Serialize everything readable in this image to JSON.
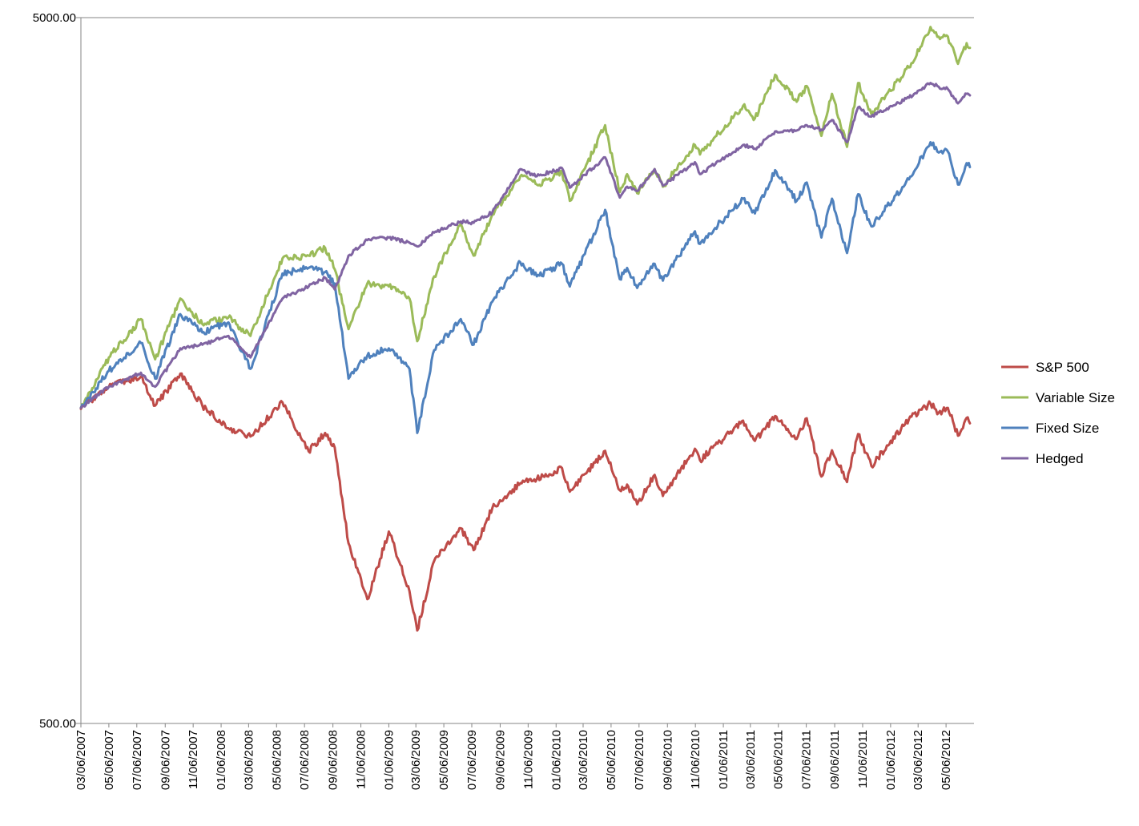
{
  "chart_data": {
    "type": "line",
    "title": "",
    "xlabel": "",
    "ylabel": "",
    "y_scale": "log",
    "ylim": [
      500,
      5000
    ],
    "y_tick_labels": [
      "5000.00",
      "500.00"
    ],
    "x_tick_labels": [
      "03/06/2007",
      "05/06/2007",
      "07/06/2007",
      "09/06/2007",
      "11/06/2007",
      "01/06/2008",
      "03/06/2008",
      "05/06/2008",
      "07/06/2008",
      "09/06/2008",
      "11/06/2008",
      "01/06/2009",
      "03/06/2009",
      "05/06/2009",
      "07/06/2009",
      "09/06/2009",
      "11/06/2009",
      "01/06/2010",
      "03/06/2010",
      "05/06/2010",
      "07/06/2010",
      "09/06/2010",
      "11/06/2010",
      "01/06/2011",
      "03/06/2011",
      "05/06/2011",
      "07/06/2011",
      "09/06/2011",
      "11/06/2011",
      "01/06/2012",
      "03/06/2012",
      "05/06/2012"
    ],
    "grid": false,
    "legend_position": "right",
    "series": [
      {
        "name": "S&P 500",
        "color": "#be4b48",
        "points": [
          [
            "2007-03-06",
            1395
          ],
          [
            "2007-05-06",
            1500
          ],
          [
            "2007-07-15",
            1550
          ],
          [
            "2007-08-15",
            1410
          ],
          [
            "2007-10-09",
            1565
          ],
          [
            "2007-11-26",
            1410
          ],
          [
            "2008-01-22",
            1310
          ],
          [
            "2008-03-10",
            1275
          ],
          [
            "2008-05-19",
            1425
          ],
          [
            "2008-07-15",
            1215
          ],
          [
            "2008-08-20",
            1290
          ],
          [
            "2008-09-10",
            1230
          ],
          [
            "2008-10-10",
            900
          ],
          [
            "2008-11-20",
            750
          ],
          [
            "2009-01-06",
            935
          ],
          [
            "2009-02-20",
            770
          ],
          [
            "2009-03-09",
            677
          ],
          [
            "2009-04-15",
            850
          ],
          [
            "2009-06-12",
            945
          ],
          [
            "2009-07-10",
            880
          ],
          [
            "2009-08-20",
            1010
          ],
          [
            "2009-10-20",
            1095
          ],
          [
            "2009-11-25",
            1110
          ],
          [
            "2010-01-19",
            1150
          ],
          [
            "2010-02-05",
            1065
          ],
          [
            "2010-04-23",
            1217
          ],
          [
            "2010-05-25",
            1070
          ],
          [
            "2010-06-10",
            1090
          ],
          [
            "2010-07-02",
            1022
          ],
          [
            "2010-08-09",
            1125
          ],
          [
            "2010-08-27",
            1050
          ],
          [
            "2010-11-05",
            1225
          ],
          [
            "2010-11-16",
            1180
          ],
          [
            "2011-02-18",
            1343
          ],
          [
            "2011-03-16",
            1257
          ],
          [
            "2011-04-29",
            1363
          ],
          [
            "2011-06-15",
            1265
          ],
          [
            "2011-07-07",
            1353
          ],
          [
            "2011-08-08",
            1119
          ],
          [
            "2011-08-31",
            1219
          ],
          [
            "2011-10-03",
            1099
          ],
          [
            "2011-10-27",
            1285
          ],
          [
            "2011-11-25",
            1158
          ],
          [
            "2012-02-15",
            1350
          ],
          [
            "2012-04-02",
            1419
          ],
          [
            "2012-04-20",
            1378
          ],
          [
            "2012-05-10",
            1400
          ],
          [
            "2012-06-01",
            1278
          ],
          [
            "2012-06-20",
            1355
          ],
          [
            "2012-06-27",
            1331
          ]
        ]
      },
      {
        "name": "Variable Size",
        "color": "#9bbb59",
        "points": [
          [
            "2007-03-06",
            1400
          ],
          [
            "2007-05-06",
            1650
          ],
          [
            "2007-07-15",
            1870
          ],
          [
            "2007-08-15",
            1640
          ],
          [
            "2007-10-09",
            2000
          ],
          [
            "2007-11-26",
            1840
          ],
          [
            "2008-01-22",
            1880
          ],
          [
            "2008-03-10",
            1770
          ],
          [
            "2008-05-19",
            2280
          ],
          [
            "2008-07-15",
            2300
          ],
          [
            "2008-08-20",
            2360
          ],
          [
            "2008-09-10",
            2200
          ],
          [
            "2008-10-10",
            1810
          ],
          [
            "2008-11-20",
            2100
          ],
          [
            "2009-01-06",
            2080
          ],
          [
            "2009-02-20",
            2000
          ],
          [
            "2009-03-09",
            1740
          ],
          [
            "2009-04-15",
            2150
          ],
          [
            "2009-06-12",
            2550
          ],
          [
            "2009-07-10",
            2300
          ],
          [
            "2009-08-20",
            2630
          ],
          [
            "2009-10-20",
            2980
          ],
          [
            "2009-11-25",
            2900
          ],
          [
            "2010-01-19",
            3020
          ],
          [
            "2010-02-05",
            2750
          ],
          [
            "2010-04-23",
            3520
          ],
          [
            "2010-05-25",
            2830
          ],
          [
            "2010-06-10",
            3000
          ],
          [
            "2010-07-02",
            2820
          ],
          [
            "2010-08-09",
            3050
          ],
          [
            "2010-08-27",
            2880
          ],
          [
            "2010-11-05",
            3300
          ],
          [
            "2010-11-16",
            3200
          ],
          [
            "2011-02-18",
            3750
          ],
          [
            "2011-03-16",
            3600
          ],
          [
            "2011-04-29",
            4150
          ],
          [
            "2011-06-15",
            3800
          ],
          [
            "2011-07-07",
            4000
          ],
          [
            "2011-08-08",
            3400
          ],
          [
            "2011-08-31",
            3900
          ],
          [
            "2011-10-03",
            3280
          ],
          [
            "2011-10-27",
            4040
          ],
          [
            "2011-11-25",
            3650
          ],
          [
            "2012-02-15",
            4250
          ],
          [
            "2012-04-02",
            4850
          ],
          [
            "2012-04-20",
            4700
          ],
          [
            "2012-05-10",
            4700
          ],
          [
            "2012-06-01",
            4300
          ],
          [
            "2012-06-20",
            4600
          ],
          [
            "2012-06-27",
            4530
          ]
        ]
      },
      {
        "name": "Fixed Size",
        "color": "#4f81bd",
        "points": [
          [
            "2007-03-06",
            1400
          ],
          [
            "2007-05-06",
            1580
          ],
          [
            "2007-07-15",
            1730
          ],
          [
            "2007-08-15",
            1540
          ],
          [
            "2007-10-09",
            1900
          ],
          [
            "2007-11-26",
            1790
          ],
          [
            "2008-01-22",
            1850
          ],
          [
            "2008-03-10",
            1590
          ],
          [
            "2008-05-19",
            2170
          ],
          [
            "2008-07-15",
            2210
          ],
          [
            "2008-08-20",
            2180
          ],
          [
            "2008-09-10",
            2100
          ],
          [
            "2008-10-10",
            1540
          ],
          [
            "2008-11-20",
            1660
          ],
          [
            "2009-01-06",
            1700
          ],
          [
            "2009-02-20",
            1590
          ],
          [
            "2009-03-09",
            1290
          ],
          [
            "2009-04-15",
            1690
          ],
          [
            "2009-06-12",
            1870
          ],
          [
            "2009-07-10",
            1720
          ],
          [
            "2009-08-20",
            1980
          ],
          [
            "2009-10-20",
            2250
          ],
          [
            "2009-11-25",
            2150
          ],
          [
            "2010-01-19",
            2240
          ],
          [
            "2010-02-05",
            2080
          ],
          [
            "2010-04-23",
            2670
          ],
          [
            "2010-05-25",
            2130
          ],
          [
            "2010-06-10",
            2210
          ],
          [
            "2010-07-02",
            2070
          ],
          [
            "2010-08-09",
            2240
          ],
          [
            "2010-08-27",
            2120
          ],
          [
            "2010-11-05",
            2490
          ],
          [
            "2010-11-16",
            2390
          ],
          [
            "2011-02-18",
            2770
          ],
          [
            "2011-03-16",
            2640
          ],
          [
            "2011-04-29",
            3040
          ],
          [
            "2011-06-15",
            2750
          ],
          [
            "2011-07-07",
            2920
          ],
          [
            "2011-08-08",
            2440
          ],
          [
            "2011-08-31",
            2770
          ],
          [
            "2011-10-03",
            2320
          ],
          [
            "2011-10-27",
            2810
          ],
          [
            "2011-11-25",
            2530
          ],
          [
            "2012-02-15",
            2950
          ],
          [
            "2012-04-02",
            3330
          ],
          [
            "2012-04-20",
            3220
          ],
          [
            "2012-05-10",
            3230
          ],
          [
            "2012-06-01",
            2900
          ],
          [
            "2012-06-20",
            3110
          ],
          [
            "2012-06-27",
            3070
          ]
        ]
      },
      {
        "name": "Hedged",
        "color": "#8064a2",
        "points": [
          [
            "2007-03-06",
            1400
          ],
          [
            "2007-05-06",
            1500
          ],
          [
            "2007-07-15",
            1570
          ],
          [
            "2007-08-15",
            1500
          ],
          [
            "2007-10-09",
            1700
          ],
          [
            "2007-11-26",
            1720
          ],
          [
            "2008-01-22",
            1770
          ],
          [
            "2008-03-10",
            1650
          ],
          [
            "2008-05-19",
            2000
          ],
          [
            "2008-07-15",
            2080
          ],
          [
            "2008-08-20",
            2140
          ],
          [
            "2008-09-10",
            2060
          ],
          [
            "2008-10-10",
            2300
          ],
          [
            "2008-11-20",
            2420
          ],
          [
            "2009-01-06",
            2440
          ],
          [
            "2009-02-20",
            2400
          ],
          [
            "2009-03-09",
            2370
          ],
          [
            "2009-04-15",
            2480
          ],
          [
            "2009-06-12",
            2570
          ],
          [
            "2009-07-10",
            2560
          ],
          [
            "2009-08-20",
            2650
          ],
          [
            "2009-10-20",
            3050
          ],
          [
            "2009-11-25",
            2980
          ],
          [
            "2010-01-19",
            3060
          ],
          [
            "2010-02-05",
            2870
          ],
          [
            "2010-04-23",
            3170
          ],
          [
            "2010-05-25",
            2780
          ],
          [
            "2010-06-10",
            2880
          ],
          [
            "2010-07-02",
            2840
          ],
          [
            "2010-08-09",
            3050
          ],
          [
            "2010-08-27",
            2890
          ],
          [
            "2010-11-05",
            3120
          ],
          [
            "2010-11-16",
            3000
          ],
          [
            "2011-02-18",
            3300
          ],
          [
            "2011-03-16",
            3260
          ],
          [
            "2011-04-29",
            3450
          ],
          [
            "2011-06-15",
            3460
          ],
          [
            "2011-07-07",
            3520
          ],
          [
            "2011-08-08",
            3470
          ],
          [
            "2011-08-31",
            3580
          ],
          [
            "2011-10-03",
            3330
          ],
          [
            "2011-10-27",
            3730
          ],
          [
            "2011-11-25",
            3620
          ],
          [
            "2012-02-15",
            3850
          ],
          [
            "2012-04-02",
            4040
          ],
          [
            "2012-04-20",
            3990
          ],
          [
            "2012-05-10",
            3960
          ],
          [
            "2012-06-01",
            3780
          ],
          [
            "2012-06-20",
            3900
          ],
          [
            "2012-06-27",
            3880
          ]
        ]
      }
    ]
  }
}
